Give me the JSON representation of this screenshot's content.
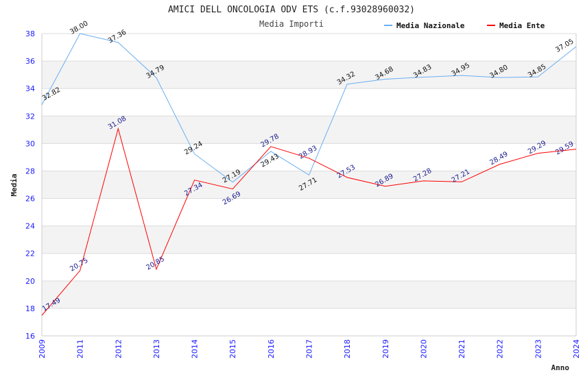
{
  "chart_data": {
    "type": "line",
    "title": "AMICI DELL ONCOLOGIA ODV ETS (c.f.93028960032)",
    "subtitle": "Media Importi",
    "xlabel": "Anno",
    "ylabel": "Media",
    "ylim": [
      16,
      38
    ],
    "yticks": [
      16,
      18,
      20,
      22,
      24,
      26,
      28,
      30,
      32,
      34,
      36,
      38
    ],
    "categories": [
      "2009",
      "2011",
      "2012",
      "2013",
      "2014",
      "2015",
      "2016",
      "2017",
      "2018",
      "2019",
      "2020",
      "2021",
      "2022",
      "2023",
      "2024"
    ],
    "grid": true,
    "legend_position": "top-right",
    "series": [
      {
        "name": "Media Nazionale",
        "color": "#6aaef0",
        "label_color": "#111111",
        "values": [
          32.82,
          38.0,
          37.36,
          34.79,
          29.24,
          27.19,
          29.43,
          27.71,
          34.32,
          34.68,
          34.83,
          34.95,
          34.8,
          34.85,
          37.05
        ]
      },
      {
        "name": "Media Ente",
        "color": "#ff0000",
        "label_color": "#1a1a8c",
        "values": [
          17.49,
          20.75,
          31.08,
          20.85,
          27.34,
          26.69,
          29.78,
          28.93,
          27.53,
          26.89,
          27.28,
          27.21,
          28.49,
          29.29,
          29.59
        ]
      }
    ]
  }
}
